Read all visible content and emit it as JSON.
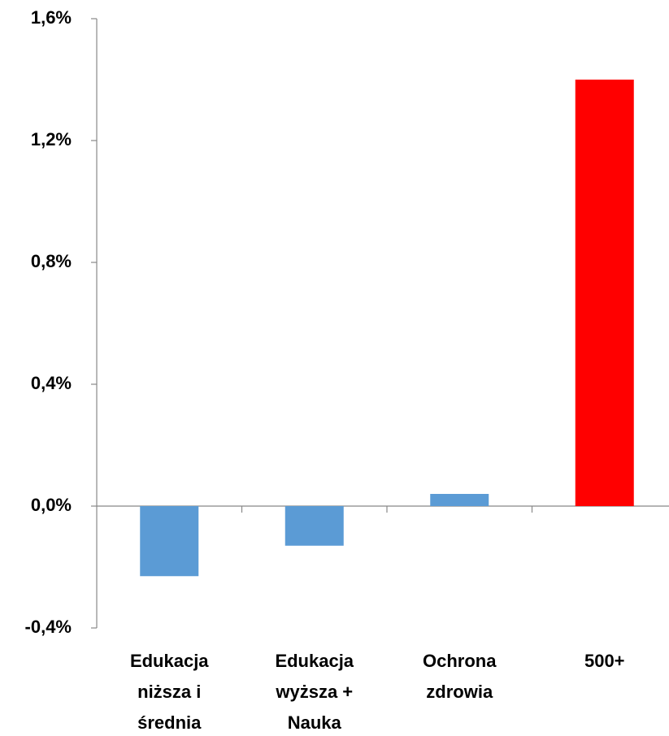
{
  "chart_data": {
    "type": "bar",
    "categories": [
      [
        "Edukacja",
        "niższa i",
        "średnia"
      ],
      [
        "Edukacja",
        "wyższa +",
        "Nauka"
      ],
      [
        "Ochrona",
        "zdrowia"
      ],
      [
        "500+"
      ]
    ],
    "values": [
      -0.23,
      -0.13,
      0.04,
      1.4
    ],
    "colors": [
      "#5b9bd5",
      "#5b9bd5",
      "#5b9bd5",
      "#ff0000"
    ],
    "ylim": [
      -0.4,
      1.6
    ],
    "yticks": [
      {
        "value": -0.4,
        "label": "-0,4%"
      },
      {
        "value": 0,
        "label": "0,0%"
      },
      {
        "value": 0.4,
        "label": "0,4%"
      },
      {
        "value": 0.8,
        "label": "0,8%"
      },
      {
        "value": 1.2,
        "label": "1,2%"
      },
      {
        "value": 1.6,
        "label": "1,6%"
      }
    ],
    "grid": false
  }
}
